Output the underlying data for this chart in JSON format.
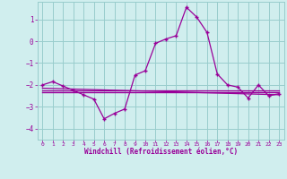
{
  "xlabel": "Windchill (Refroidissement éolien,°C)",
  "background_color": "#d0eeee",
  "line_color": "#990099",
  "grid_color": "#99cccc",
  "xlim": [
    -0.5,
    23.5
  ],
  "ylim": [
    -4.5,
    1.8
  ],
  "yticks": [
    -4,
    -3,
    -2,
    -1,
    0,
    1
  ],
  "xticks": [
    0,
    1,
    2,
    3,
    4,
    5,
    6,
    7,
    8,
    9,
    10,
    11,
    12,
    13,
    14,
    15,
    16,
    17,
    18,
    19,
    20,
    21,
    22,
    23
  ],
  "main_line_x": [
    0,
    1,
    2,
    3,
    4,
    5,
    6,
    7,
    8,
    9,
    10,
    11,
    12,
    13,
    14,
    15,
    16,
    17,
    18,
    19,
    20,
    21,
    22,
    23
  ],
  "main_line_y": [
    -2.0,
    -1.85,
    -2.05,
    -2.25,
    -2.45,
    -2.65,
    -3.55,
    -3.3,
    -3.1,
    -1.55,
    -1.35,
    -0.1,
    0.1,
    0.25,
    1.55,
    1.1,
    0.4,
    -1.5,
    -2.0,
    -2.1,
    -2.6,
    -2.0,
    -2.5,
    -2.4
  ],
  "avg_line_x": [
    0,
    23
  ],
  "avg_line_y": [
    -2.35,
    -2.35
  ],
  "reg_line1_x": [
    0,
    23
  ],
  "reg_line1_y": [
    -2.15,
    -2.45
  ],
  "reg_line2_x": [
    0,
    23
  ],
  "reg_line2_y": [
    -2.25,
    -2.25
  ]
}
